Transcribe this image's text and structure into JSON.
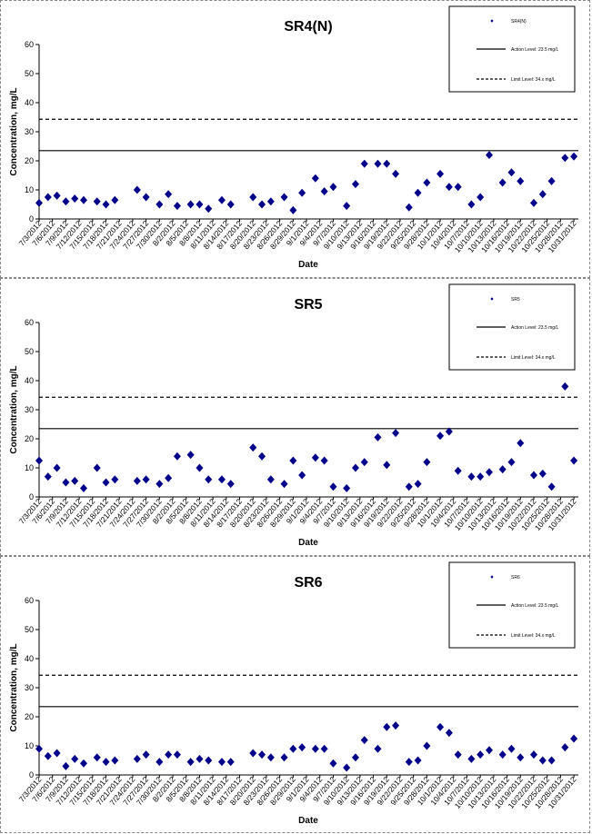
{
  "chart_data": [
    {
      "type": "scatter",
      "title": "SR4(N)",
      "xlabel": "Date",
      "ylabel": "Concentration, mg/L",
      "ylim": [
        0,
        60
      ],
      "yticks": [
        0,
        10,
        20,
        30,
        40,
        50,
        60
      ],
      "x_tick_labels": [
        "7/3/2012",
        "7/6/2012",
        "7/9/2012",
        "7/12/2012",
        "7/15/2012",
        "7/18/2012",
        "7/21/2012",
        "7/24/2012",
        "7/27/2012",
        "7/30/2012",
        "8/2/2012",
        "8/5/2012",
        "8/8/2012",
        "8/11/2012",
        "8/14/2012",
        "8/17/2012",
        "8/20/2012",
        "8/23/2012",
        "8/26/2012",
        "8/29/2012",
        "9/1/2012",
        "9/4/2012",
        "9/7/2012",
        "9/10/2012",
        "9/13/2012",
        "9/16/2012",
        "9/19/2012",
        "9/22/2012",
        "9/25/2012",
        "9/28/2012",
        "10/1/2012",
        "10/4/2012",
        "10/7/2012",
        "10/10/2012",
        "10/13/2012",
        "10/16/2012",
        "10/19/2012",
        "10/22/2012",
        "10/25/2012",
        "10/28/2012",
        "10/31/2012"
      ],
      "x_range": [
        "7/3/2012",
        "11/1/2012"
      ],
      "legend_position": "top-right",
      "series": [
        {
          "name": "SR4(N)",
          "kind": "points",
          "color": "#00008B",
          "x": [
            "7/3/2012",
            "7/5/2012",
            "7/7/2012",
            "7/9/2012",
            "7/11/2012",
            "7/13/2012",
            "7/16/2012",
            "7/18/2012",
            "7/20/2012",
            "7/25/2012",
            "7/27/2012",
            "7/30/2012",
            "8/1/2012",
            "8/3/2012",
            "8/6/2012",
            "8/8/2012",
            "8/10/2012",
            "8/13/2012",
            "8/15/2012",
            "8/20/2012",
            "8/22/2012",
            "8/24/2012",
            "8/27/2012",
            "8/29/2012",
            "8/31/2012",
            "9/3/2012",
            "9/5/2012",
            "9/7/2012",
            "9/10/2012",
            "9/12/2012",
            "9/14/2012",
            "9/17/2012",
            "9/19/2012",
            "9/21/2012",
            "9/24/2012",
            "9/26/2012",
            "9/28/2012",
            "10/1/2012",
            "10/3/2012",
            "10/5/2012",
            "10/8/2012",
            "10/10/2012",
            "10/12/2012",
            "10/15/2012",
            "10/17/2012",
            "10/19/2012",
            "10/22/2012",
            "10/24/2012",
            "10/26/2012",
            "10/29/2012",
            "10/31/2012"
          ],
          "y": [
            5.5,
            7.5,
            8,
            6,
            7,
            6.5,
            6,
            5,
            6.5,
            10,
            7.5,
            5,
            8.5,
            4.5,
            5,
            5,
            3.5,
            6.5,
            5,
            7.5,
            5,
            6,
            7.5,
            3,
            9,
            14,
            9.5,
            11,
            4.5,
            12,
            19,
            19,
            19,
            15.5,
            4,
            9,
            12.5,
            15.5,
            11,
            11,
            5,
            7.5,
            22,
            12.5,
            16,
            13,
            5.5,
            8.5,
            13,
            21,
            21.5
          ]
        },
        {
          "name": "Action Level: 23.5 mg/L",
          "kind": "line",
          "style": "solid",
          "y_value": 23.5
        },
        {
          "name": "Limit Level: 34.x mg/L",
          "kind": "line",
          "style": "dashed",
          "y_value": 34.3
        }
      ]
    },
    {
      "type": "scatter",
      "title": "SR5",
      "xlabel": "Date",
      "ylabel": "Concentration, mg/L",
      "ylim": [
        0,
        60
      ],
      "yticks": [
        0,
        10,
        20,
        30,
        40,
        50,
        60
      ],
      "x_tick_labels": [
        "7/3/2012",
        "7/6/2012",
        "7/9/2012",
        "7/12/2012",
        "7/15/2012",
        "7/18/2012",
        "7/21/2012",
        "7/24/2012",
        "7/27/2012",
        "7/30/2012",
        "8/2/2012",
        "8/5/2012",
        "8/8/2012",
        "8/11/2012",
        "8/14/2012",
        "8/17/2012",
        "8/20/2012",
        "8/23/2012",
        "8/26/2012",
        "8/29/2012",
        "9/1/2012",
        "9/4/2012",
        "9/7/2012",
        "9/10/2012",
        "9/13/2012",
        "9/16/2012",
        "9/19/2012",
        "9/22/2012",
        "9/25/2012",
        "9/28/2012",
        "10/1/2012",
        "10/4/2012",
        "10/7/2012",
        "10/10/2012",
        "10/13/2012",
        "10/16/2012",
        "10/19/2012",
        "10/22/2012",
        "10/25/2012",
        "10/28/2012",
        "10/31/2012"
      ],
      "x_range": [
        "7/3/2012",
        "11/1/2012"
      ],
      "legend_position": "top-right",
      "series": [
        {
          "name": "SR5",
          "kind": "points",
          "color": "#00008B",
          "x": [
            "7/3/2012",
            "7/5/2012",
            "7/7/2012",
            "7/9/2012",
            "7/11/2012",
            "7/13/2012",
            "7/16/2012",
            "7/18/2012",
            "7/20/2012",
            "7/25/2012",
            "7/27/2012",
            "7/30/2012",
            "8/1/2012",
            "8/3/2012",
            "8/6/2012",
            "8/8/2012",
            "8/10/2012",
            "8/13/2012",
            "8/15/2012",
            "8/20/2012",
            "8/22/2012",
            "8/24/2012",
            "8/27/2012",
            "8/29/2012",
            "8/31/2012",
            "9/3/2012",
            "9/5/2012",
            "9/7/2012",
            "9/10/2012",
            "9/12/2012",
            "9/14/2012",
            "9/17/2012",
            "9/19/2012",
            "9/21/2012",
            "9/24/2012",
            "9/26/2012",
            "9/28/2012",
            "10/1/2012",
            "10/3/2012",
            "10/5/2012",
            "10/8/2012",
            "10/10/2012",
            "10/12/2012",
            "10/15/2012",
            "10/17/2012",
            "10/19/2012",
            "10/22/2012",
            "10/24/2012",
            "10/26/2012",
            "10/29/2012",
            "10/31/2012"
          ],
          "y": [
            12.5,
            7,
            10,
            5,
            5.5,
            3,
            10,
            5,
            6,
            5.5,
            6,
            4.5,
            6.5,
            14,
            14.5,
            10,
            6,
            6,
            4.5,
            17,
            14,
            6,
            4.5,
            12.5,
            7.5,
            13.5,
            12.5,
            3.5,
            3,
            10,
            12,
            20.5,
            11,
            22,
            3.5,
            4.5,
            12,
            21,
            22.5,
            9,
            7,
            7,
            8.5,
            9.5,
            12,
            18.5,
            7.5,
            8,
            3.5,
            38,
            12.5
          ]
        },
        {
          "name": "Action Level: 23.5 mg/L",
          "kind": "line",
          "style": "solid",
          "y_value": 23.5
        },
        {
          "name": "Limit Level: 34.x mg/L",
          "kind": "line",
          "style": "dashed",
          "y_value": 34.3
        }
      ]
    },
    {
      "type": "scatter",
      "title": "SR6",
      "xlabel": "Date",
      "ylabel": "Concentration, mg/L",
      "ylim": [
        0,
        60
      ],
      "yticks": [
        0,
        10,
        20,
        30,
        40,
        50,
        60
      ],
      "x_tick_labels": [
        "7/3/2012",
        "7/6/2012",
        "7/9/2012",
        "7/12/2012",
        "7/15/2012",
        "7/18/2012",
        "7/21/2012",
        "7/24/2012",
        "7/27/2012",
        "7/30/2012",
        "8/2/2012",
        "8/5/2012",
        "8/8/2012",
        "8/11/2012",
        "8/14/2012",
        "8/17/2012",
        "8/20/2012",
        "8/23/2012",
        "8/26/2012",
        "8/29/2012",
        "9/1/2012",
        "9/4/2012",
        "9/7/2012",
        "9/10/2012",
        "9/13/2012",
        "9/16/2012",
        "9/19/2012",
        "9/22/2012",
        "9/25/2012",
        "9/28/2012",
        "10/1/2012",
        "10/4/2012",
        "10/7/2012",
        "10/10/2012",
        "10/13/2012",
        "10/16/2012",
        "10/19/2012",
        "10/22/2012",
        "10/25/2012",
        "10/28/2012",
        "10/31/2012"
      ],
      "x_range": [
        "7/3/2012",
        "11/1/2012"
      ],
      "legend_position": "top-right",
      "series": [
        {
          "name": "SR6",
          "kind": "points",
          "color": "#00008B",
          "x": [
            "7/3/2012",
            "7/5/2012",
            "7/7/2012",
            "7/9/2012",
            "7/11/2012",
            "7/13/2012",
            "7/16/2012",
            "7/18/2012",
            "7/20/2012",
            "7/25/2012",
            "7/27/2012",
            "7/30/2012",
            "8/1/2012",
            "8/3/2012",
            "8/6/2012",
            "8/8/2012",
            "8/10/2012",
            "8/13/2012",
            "8/15/2012",
            "8/20/2012",
            "8/22/2012",
            "8/24/2012",
            "8/27/2012",
            "8/29/2012",
            "8/31/2012",
            "9/3/2012",
            "9/5/2012",
            "9/7/2012",
            "9/10/2012",
            "9/12/2012",
            "9/14/2012",
            "9/17/2012",
            "9/19/2012",
            "9/21/2012",
            "9/24/2012",
            "9/26/2012",
            "9/28/2012",
            "10/1/2012",
            "10/3/2012",
            "10/5/2012",
            "10/8/2012",
            "10/10/2012",
            "10/12/2012",
            "10/15/2012",
            "10/17/2012",
            "10/19/2012",
            "10/22/2012",
            "10/24/2012",
            "10/26/2012",
            "10/29/2012",
            "10/31/2012"
          ],
          "y": [
            9,
            6.5,
            7.5,
            3,
            5.5,
            4,
            6,
            4.5,
            5,
            5.5,
            7,
            4.5,
            7,
            7,
            4.5,
            5.5,
            5,
            4.5,
            4.5,
            7.5,
            7,
            6,
            6,
            9,
            9.5,
            9,
            9,
            4,
            2.5,
            6,
            12,
            9,
            16.5,
            17,
            4.5,
            5,
            10,
            16.5,
            14.5,
            7,
            5.5,
            7,
            8.5,
            7,
            9,
            6,
            7,
            5,
            5,
            9.5,
            12.5
          ]
        },
        {
          "name": "Action Level: 23.5 mg/L",
          "kind": "line",
          "style": "solid",
          "y_value": 23.5
        },
        {
          "name": "Limit Level: 34.x mg/L",
          "kind": "line",
          "style": "dashed",
          "y_value": 34.3
        }
      ]
    }
  ]
}
